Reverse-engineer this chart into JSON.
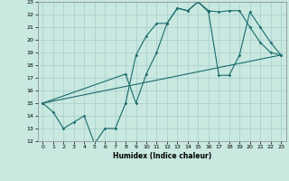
{
  "xlabel": "Humidex (Indice chaleur)",
  "ylabel": "",
  "bg_color": "#c8e8e0",
  "grid_color": "#a8cccc",
  "line_color": "#1a6b6b",
  "xlim": [
    -0.5,
    23.5
  ],
  "ylim": [
    12,
    23
  ],
  "xticks": [
    0,
    1,
    2,
    3,
    4,
    5,
    6,
    7,
    8,
    9,
    10,
    11,
    12,
    13,
    14,
    15,
    16,
    17,
    18,
    19,
    20,
    21,
    22,
    23
  ],
  "yticks": [
    12,
    13,
    14,
    15,
    16,
    17,
    18,
    19,
    20,
    21,
    22,
    23
  ],
  "line1_x": [
    0,
    1,
    2,
    3,
    4,
    5,
    6,
    7,
    8,
    9,
    10,
    11,
    12,
    13,
    14,
    15,
    16,
    17,
    18,
    19,
    20,
    21,
    22,
    23
  ],
  "line1_y": [
    15,
    14.3,
    13,
    13.5,
    14,
    11.8,
    13,
    13,
    15,
    18.8,
    20.3,
    21.3,
    21.3,
    22.5,
    22.3,
    23,
    22.3,
    22.2,
    22.3,
    22.3,
    21,
    19.8,
    19,
    18.8
  ],
  "line2_x": [
    0,
    23
  ],
  "line2_y": [
    15,
    18.8
  ],
  "line3_x": [
    0,
    8,
    9,
    10,
    11,
    12,
    13,
    14,
    15,
    16,
    17,
    18,
    19,
    20,
    21,
    22,
    23
  ],
  "line3_y": [
    15,
    17.3,
    15,
    17.3,
    19,
    21.3,
    22.5,
    22.3,
    23,
    22.2,
    17.2,
    17.2,
    18.8,
    22.2,
    21.0,
    19.8,
    18.8
  ]
}
